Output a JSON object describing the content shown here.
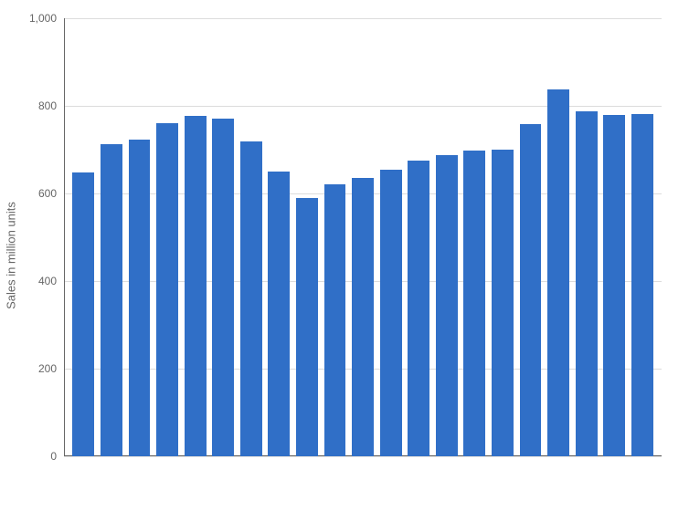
{
  "chart": {
    "type": "bar",
    "ylabel": "Sales in million units",
    "label_fontsize": 13,
    "label_color": "#666666",
    "ylim": [
      0,
      1000
    ],
    "ytick_step": 200,
    "yticks": [
      0,
      200,
      400,
      600,
      800,
      1000
    ],
    "ytick_fontsize": 12,
    "ytick_color": "#666666",
    "ytick_labels": [
      "0",
      "200",
      "400",
      "600",
      "800",
      "1,000"
    ],
    "values": [
      648,
      712,
      722,
      760,
      778,
      770,
      718,
      650,
      590,
      620,
      635,
      655,
      675,
      688,
      698,
      700,
      758,
      838,
      788,
      780,
      782
    ],
    "bar_color": "#306fc7",
    "bar_width": 0.78,
    "background_color": "#ffffff",
    "grid_color": "#dcdcdc",
    "axis_color": "#666666"
  }
}
